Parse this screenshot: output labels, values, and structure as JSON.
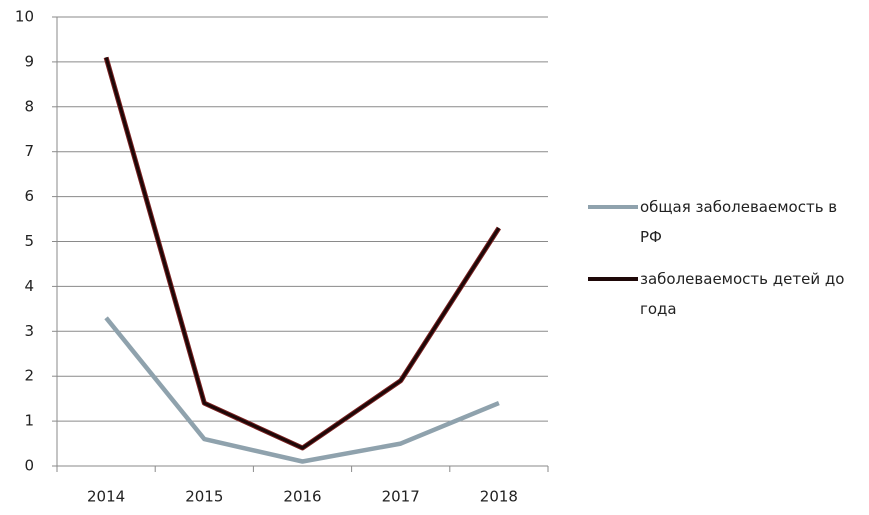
{
  "chart_data": {
    "type": "line",
    "categories": [
      "2014",
      "2015",
      "2016",
      "2017",
      "2018"
    ],
    "series": [
      {
        "name": "общая заболеваемость в РФ",
        "color": "#8fa2ad",
        "values": [
          3.3,
          0.6,
          0.1,
          0.5,
          1.4
        ]
      },
      {
        "name": "заболеваемость детей до года",
        "color": "#1e0808",
        "values": [
          9.1,
          1.4,
          0.4,
          1.9,
          5.3
        ]
      }
    ],
    "ylim": [
      0,
      10
    ],
    "yticks": [
      0,
      1,
      2,
      3,
      4,
      5,
      6,
      7,
      8,
      9,
      10
    ],
    "grid": true,
    "legend": "right"
  }
}
